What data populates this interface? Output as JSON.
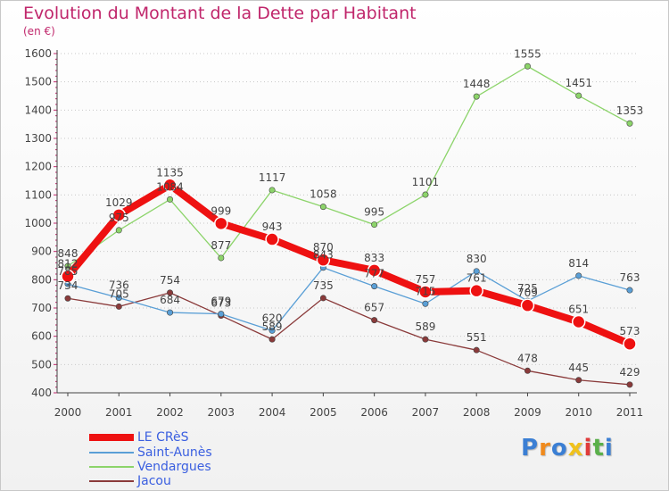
{
  "chart_data": {
    "type": "line",
    "title": "Evolution du Montant de la Dette par Habitant",
    "subtitle": "(en €)",
    "categories": [
      "2000",
      "2001",
      "2002",
      "2003",
      "2004",
      "2005",
      "2006",
      "2007",
      "2008",
      "2009",
      "2010",
      "2011"
    ],
    "y_ticks": [
      "400",
      "500",
      "600",
      "700",
      "800",
      "900",
      "1000",
      "1100",
      "1200",
      "1300",
      "1400",
      "1500",
      "1600"
    ],
    "ylim": [
      400,
      1600
    ],
    "grid": "horizontal dotted",
    "legend_position": "bottom-left",
    "series": [
      {
        "name": "LE CRèS",
        "color": "#ee1111",
        "values": [
          812,
          1029,
          1135,
          999,
          943,
          870,
          833,
          757,
          761,
          709,
          651,
          573
        ],
        "labels": [
          "812",
          "1029",
          "1135",
          "999",
          "943",
          "870",
          "833",
          "757",
          "761",
          "709",
          "651",
          "573"
        ]
      },
      {
        "name": "Saint-Aunès",
        "color": "#5a9fd6",
        "values": [
          785,
          736,
          684,
          679,
          620,
          843,
          777,
          715,
          830,
          725,
          814,
          763
        ],
        "labels": [
          "785",
          "736",
          "684",
          "679",
          "620",
          "843",
          "777",
          "715",
          "830",
          "725",
          "814",
          "763"
        ]
      },
      {
        "name": "Vendargues",
        "color": "#8cd46a",
        "values": [
          848,
          975,
          1084,
          877,
          1117,
          1058,
          995,
          1101,
          1448,
          1555,
          1451,
          1353
        ],
        "labels": [
          "848",
          "975",
          "1084",
          "877",
          "1117",
          "1058",
          "995",
          "1101",
          "1448",
          "1555",
          "1451",
          "1353"
        ]
      },
      {
        "name": "Jacou",
        "color": "#8a3a3a",
        "values": [
          734,
          705,
          754,
          673,
          589,
          735,
          657,
          589,
          551,
          478,
          445,
          429
        ],
        "labels": [
          "734",
          "705",
          "754",
          "673",
          "589",
          "735",
          "657",
          "589",
          "551",
          "478",
          "445",
          "429"
        ]
      }
    ]
  },
  "legend": {
    "items": [
      "LE CRèS",
      "Saint-Aunès",
      "Vendargues",
      "Jacou"
    ]
  },
  "logo": {
    "letters": [
      "P",
      "r",
      "o",
      "x",
      "i",
      "t",
      "i"
    ],
    "colors": [
      "#3b7fd4",
      "#f08a1c",
      "#3b7fd4",
      "#f0c21c",
      "#e03a3a",
      "#5ab04a",
      "#3b7fd4"
    ]
  }
}
